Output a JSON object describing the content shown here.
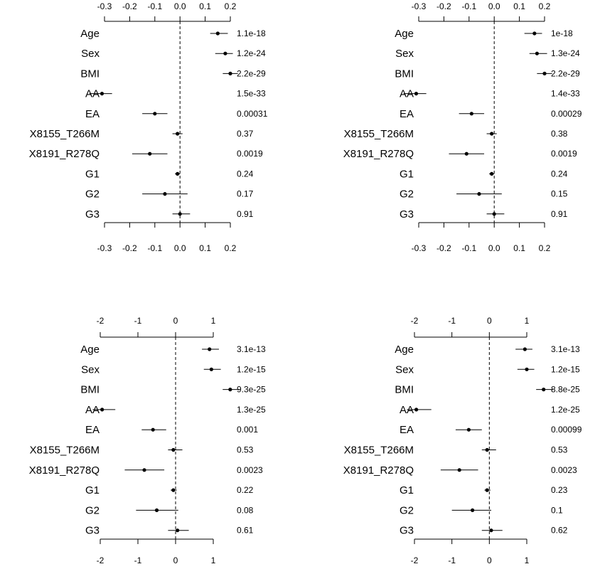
{
  "chart_data": [
    {
      "type": "forest",
      "categories": [
        "Age",
        "Sex",
        "BMI",
        "AA",
        "EA",
        "X8155_T266M",
        "X8191_R278Q",
        "G1",
        "G2",
        "G3"
      ],
      "estimate": [
        0.15,
        0.18,
        0.2,
        -0.31,
        -0.1,
        -0.01,
        -0.12,
        -0.01,
        -0.06,
        0.0
      ],
      "ci_low": [
        0.12,
        0.14,
        0.17,
        -0.36,
        -0.15,
        -0.03,
        -0.19,
        -0.02,
        -0.15,
        -0.03
      ],
      "ci_high": [
        0.19,
        0.21,
        0.23,
        -0.27,
        -0.05,
        0.01,
        -0.05,
        0.0,
        0.03,
        0.04
      ],
      "pvalues": [
        "1.1e-18",
        "1.2e-24",
        "2.2e-29",
        "1.5e-33",
        "0.00031",
        "0.37",
        "0.0019",
        "0.24",
        "0.17",
        "0.91"
      ],
      "xticks": [
        "-0.3",
        "-0.2",
        "-0.1",
        "0.0",
        "0.1",
        "0.2"
      ],
      "xlim": [
        -0.3,
        0.2
      ],
      "reference_line": 0
    },
    {
      "type": "forest",
      "categories": [
        "Age",
        "Sex",
        "BMI",
        "AA",
        "EA",
        "X8155_T266M",
        "X8191_R278Q",
        "G1",
        "G2",
        "G3"
      ],
      "estimate": [
        0.16,
        0.17,
        0.2,
        -0.31,
        -0.09,
        -0.01,
        -0.11,
        -0.01,
        -0.06,
        0.0
      ],
      "ci_low": [
        0.12,
        0.14,
        0.17,
        -0.36,
        -0.14,
        -0.03,
        -0.18,
        -0.02,
        -0.15,
        -0.03
      ],
      "ci_high": [
        0.19,
        0.21,
        0.23,
        -0.27,
        -0.04,
        0.01,
        -0.04,
        0.0,
        0.03,
        0.04
      ],
      "pvalues": [
        "1e-18",
        "1.3e-24",
        "2.2e-29",
        "1.4e-33",
        "0.00029",
        "0.38",
        "0.0019",
        "0.24",
        "0.15",
        "0.91"
      ],
      "xticks": [
        "-0.3",
        "-0.2",
        "-0.1",
        "0.0",
        "0.1",
        "0.2"
      ],
      "xlim": [
        -0.3,
        0.2
      ],
      "reference_line": 0
    },
    {
      "type": "forest",
      "categories": [
        "Age",
        "Sex",
        "BMI",
        "AA",
        "EA",
        "X8155_T266M",
        "X8191_R278Q",
        "G1",
        "G2",
        "G3"
      ],
      "estimate": [
        0.9,
        0.95,
        1.45,
        -1.95,
        -0.6,
        -0.06,
        -0.83,
        -0.06,
        -0.5,
        0.05
      ],
      "ci_low": [
        0.7,
        0.75,
        1.25,
        -2.2,
        -0.9,
        -0.2,
        -1.35,
        -0.13,
        -1.05,
        -0.2
      ],
      "ci_high": [
        1.15,
        1.2,
        1.7,
        -1.6,
        -0.25,
        0.18,
        -0.3,
        0.03,
        0.07,
        0.35
      ],
      "pvalues": [
        "3.1e-13",
        "1.2e-15",
        "9.3e-25",
        "1.3e-25",
        "0.001",
        "0.53",
        "0.0023",
        "0.22",
        "0.08",
        "0.61"
      ],
      "xticks": [
        "-2",
        "-1",
        "0",
        "1"
      ],
      "xlim": [
        -2,
        1
      ],
      "reference_line": 0
    },
    {
      "type": "forest",
      "categories": [
        "Age",
        "Sex",
        "BMI",
        "AA",
        "EA",
        "X8155_T266M",
        "X8191_R278Q",
        "G1",
        "G2",
        "G3"
      ],
      "estimate": [
        0.95,
        1.0,
        1.45,
        -1.95,
        -0.55,
        -0.06,
        -0.8,
        -0.06,
        -0.45,
        0.05
      ],
      "ci_low": [
        0.7,
        0.75,
        1.25,
        -2.2,
        -0.9,
        -0.2,
        -1.3,
        -0.13,
        -1.0,
        -0.2
      ],
      "ci_high": [
        1.15,
        1.2,
        1.7,
        -1.55,
        -0.2,
        0.18,
        -0.3,
        0.03,
        0.05,
        0.35
      ],
      "pvalues": [
        "3.1e-13",
        "1.2e-15",
        "8.8e-25",
        "1.2e-25",
        "0.00099",
        "0.53",
        "0.0023",
        "0.23",
        "0.1",
        "0.62"
      ],
      "xticks": [
        "-2",
        "-1",
        "0",
        "1"
      ],
      "xlim": [
        -2,
        1
      ],
      "reference_line": 0
    }
  ]
}
